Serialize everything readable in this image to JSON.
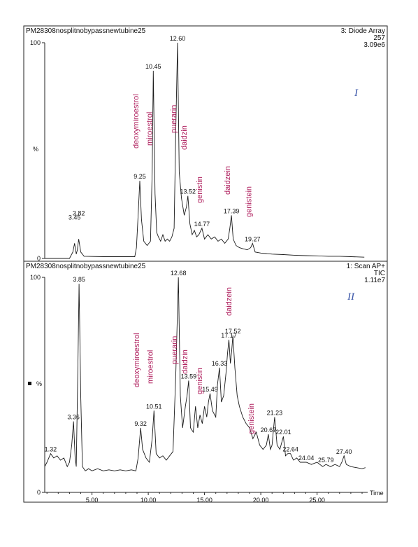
{
  "chart_data": [
    {
      "type": "line",
      "sample_name": "PM28308nosplitnobypassnewtubine25",
      "channel": "3: Diode Array",
      "channel_detail": "257",
      "intensity": "3.09e6",
      "panel_label": "I",
      "ylabel": "%",
      "ytick_labels": [
        "100",
        "0"
      ],
      "ylim": [
        0,
        100
      ],
      "xlim": [
        0.8,
        29.5
      ],
      "peak_labels": [
        {
          "time": 3.45,
          "label": "3.45",
          "y": 17
        },
        {
          "time": 3.82,
          "label": "3.82",
          "y": 19
        },
        {
          "time": 9.25,
          "label": "9.25",
          "y": 36
        },
        {
          "time": 10.45,
          "label": "10.45",
          "y": 87
        },
        {
          "time": 12.6,
          "label": "12.60",
          "y": 100
        },
        {
          "time": 13.52,
          "label": "13.52",
          "y": 29
        },
        {
          "time": 14.77,
          "label": "14.77",
          "y": 14
        },
        {
          "time": 17.39,
          "label": "17.39",
          "y": 20
        },
        {
          "time": 19.27,
          "label": "19.27",
          "y": 7
        }
      ],
      "compounds": [
        {
          "name": "deoxymiroestrol",
          "time": 9.25
        },
        {
          "name": "miroestrol",
          "time": 10.45
        },
        {
          "name": "puerarin",
          "time": 12.6
        },
        {
          "name": "daidzin",
          "time": 13.52
        },
        {
          "name": "genistin",
          "time": 14.9
        },
        {
          "name": "daidzein",
          "time": 17.39
        },
        {
          "name": "genistein",
          "time": 19.27
        }
      ],
      "trace": [
        [
          0.8,
          0.0
        ],
        [
          3.0,
          0.0
        ],
        [
          3.3,
          3.0
        ],
        [
          3.45,
          7.0
        ],
        [
          3.6,
          2.0
        ],
        [
          3.7,
          4.0
        ],
        [
          3.82,
          9.0
        ],
        [
          4.0,
          3.0
        ],
        [
          4.3,
          1.0
        ],
        [
          6.0,
          0.8
        ],
        [
          8.8,
          0.8
        ],
        [
          8.95,
          5.0
        ],
        [
          9.1,
          20.0
        ],
        [
          9.25,
          36.0
        ],
        [
          9.4,
          18.0
        ],
        [
          9.6,
          8.0
        ],
        [
          9.9,
          6.0
        ],
        [
          10.2,
          8.0
        ],
        [
          10.35,
          40.0
        ],
        [
          10.45,
          87.0
        ],
        [
          10.6,
          30.0
        ],
        [
          10.75,
          12.0
        ],
        [
          10.9,
          10.0
        ],
        [
          11.1,
          8.0
        ],
        [
          11.3,
          11.0
        ],
        [
          11.5,
          8.0
        ],
        [
          11.7,
          9.0
        ],
        [
          11.9,
          8.0
        ],
        [
          12.1,
          10.0
        ],
        [
          12.3,
          14.0
        ],
        [
          12.45,
          60.0
        ],
        [
          12.6,
          100.0
        ],
        [
          12.75,
          40.0
        ],
        [
          12.95,
          28.0
        ],
        [
          13.2,
          20.0
        ],
        [
          13.4,
          24.0
        ],
        [
          13.52,
          29.0
        ],
        [
          13.7,
          16.0
        ],
        [
          13.9,
          11.0
        ],
        [
          14.1,
          13.0
        ],
        [
          14.3,
          10.0
        ],
        [
          14.5,
          11.0
        ],
        [
          14.77,
          14.0
        ],
        [
          15.0,
          9.0
        ],
        [
          15.3,
          11.0
        ],
        [
          15.6,
          9.0
        ],
        [
          15.9,
          10.0
        ],
        [
          16.2,
          8.0
        ],
        [
          16.5,
          9.0
        ],
        [
          16.8,
          7.0
        ],
        [
          17.1,
          9.0
        ],
        [
          17.25,
          14.0
        ],
        [
          17.39,
          20.0
        ],
        [
          17.55,
          9.0
        ],
        [
          17.8,
          6.0
        ],
        [
          18.1,
          5.0
        ],
        [
          18.4,
          4.5
        ],
        [
          18.8,
          4.0
        ],
        [
          19.1,
          5.0
        ],
        [
          19.27,
          7.0
        ],
        [
          19.5,
          3.0
        ],
        [
          20.0,
          2.5
        ],
        [
          21.0,
          2.0
        ],
        [
          22.0,
          1.8
        ],
        [
          23.0,
          1.5
        ],
        [
          24.0,
          1.3
        ],
        [
          25.0,
          1.2
        ],
        [
          26.0,
          1.0
        ],
        [
          27.0,
          1.0
        ],
        [
          28.0,
          0.8
        ],
        [
          29.2,
          0.6
        ]
      ]
    },
    {
      "type": "line",
      "sample_name": "PM28308nosplitnobypassnewtubine25",
      "channel": "1: Scan AP+",
      "channel_detail": "TIC",
      "intensity": "1.11e7",
      "panel_label": "II",
      "ylabel": "%",
      "ytick_labels": [
        "100",
        "0"
      ],
      "ylim": [
        0,
        100
      ],
      "xlabel": "Time",
      "xlim": [
        0.8,
        29.5
      ],
      "xtick_labels": [
        "5.00",
        "10.00",
        "15.00",
        "20.00",
        "25.00"
      ],
      "xticks": [
        5,
        10,
        15,
        20,
        25
      ],
      "peak_labels": [
        {
          "time": 1.32,
          "label": "1.32",
          "y": 18
        },
        {
          "time": 3.36,
          "label": "3.36",
          "y": 33
        },
        {
          "time": 3.85,
          "label": "3.85",
          "y": 97
        },
        {
          "time": 9.32,
          "label": "9.32",
          "y": 30
        },
        {
          "time": 10.51,
          "label": "10.51",
          "y": 38
        },
        {
          "time": 12.68,
          "label": "12.68",
          "y": 100
        },
        {
          "time": 13.59,
          "label": "13.59",
          "y": 52
        },
        {
          "time": 15.49,
          "label": "15.49",
          "y": 46
        },
        {
          "time": 16.33,
          "label": "16.33",
          "y": 58
        },
        {
          "time": 17.17,
          "label": "17.17",
          "y": 71
        },
        {
          "time": 17.52,
          "label": "17.52",
          "y": 73
        },
        {
          "time": 20.67,
          "label": "20.67",
          "y": 27
        },
        {
          "time": 21.23,
          "label": "21.23",
          "y": 35
        },
        {
          "time": 22.01,
          "label": "22.01",
          "y": 26
        },
        {
          "time": 22.64,
          "label": "22.64",
          "y": 18
        },
        {
          "time": 24.04,
          "label": "24.04",
          "y": 14
        },
        {
          "time": 25.79,
          "label": "25.79",
          "y": 13
        },
        {
          "time": 27.4,
          "label": "27.40",
          "y": 17
        }
      ],
      "compounds": [
        {
          "name": "deoxymiroestrol",
          "time": 9.32
        },
        {
          "name": "miroestrol",
          "time": 10.51
        },
        {
          "name": "puerarin",
          "time": 12.68
        },
        {
          "name": "daidzin",
          "time": 13.59
        },
        {
          "name": "genistin",
          "time": 14.9
        },
        {
          "name": "daidzein",
          "time": 17.52
        },
        {
          "name": "genistein",
          "time": 19.5
        }
      ],
      "trace": [
        [
          0.8,
          12.0
        ],
        [
          1.0,
          14.0
        ],
        [
          1.32,
          18.0
        ],
        [
          1.6,
          16.0
        ],
        [
          1.9,
          17.0
        ],
        [
          2.2,
          15.0
        ],
        [
          2.5,
          16.0
        ],
        [
          2.8,
          12.0
        ],
        [
          3.0,
          14.0
        ],
        [
          3.2,
          22.0
        ],
        [
          3.36,
          33.0
        ],
        [
          3.5,
          16.0
        ],
        [
          3.6,
          12.0
        ],
        [
          3.75,
          60.0
        ],
        [
          3.85,
          97.0
        ],
        [
          4.0,
          45.0
        ],
        [
          4.15,
          12.0
        ],
        [
          4.4,
          10.0
        ],
        [
          4.7,
          11.0
        ],
        [
          5.0,
          10.0
        ],
        [
          5.5,
          11.0
        ],
        [
          6.0,
          10.0
        ],
        [
          6.5,
          10.5
        ],
        [
          7.0,
          10.0
        ],
        [
          7.5,
          10.5
        ],
        [
          8.0,
          10.0
        ],
        [
          8.5,
          10.5
        ],
        [
          8.9,
          10.0
        ],
        [
          9.1,
          16.0
        ],
        [
          9.32,
          30.0
        ],
        [
          9.5,
          20.0
        ],
        [
          9.8,
          16.0
        ],
        [
          10.1,
          14.0
        ],
        [
          10.35,
          25.0
        ],
        [
          10.51,
          38.0
        ],
        [
          10.7,
          18.0
        ],
        [
          11.0,
          16.0
        ],
        [
          11.3,
          17.0
        ],
        [
          11.6,
          15.0
        ],
        [
          11.9,
          17.0
        ],
        [
          12.2,
          19.0
        ],
        [
          12.45,
          55.0
        ],
        [
          12.68,
          100.0
        ],
        [
          12.85,
          45.0
        ],
        [
          13.05,
          30.0
        ],
        [
          13.3,
          40.0
        ],
        [
          13.45,
          45.0
        ],
        [
          13.59,
          52.0
        ],
        [
          13.75,
          30.0
        ],
        [
          14.0,
          28.0
        ],
        [
          14.2,
          40.0
        ],
        [
          14.4,
          30.0
        ],
        [
          14.6,
          36.0
        ],
        [
          14.8,
          32.0
        ],
        [
          15.0,
          40.0
        ],
        [
          15.2,
          35.0
        ],
        [
          15.35,
          42.0
        ],
        [
          15.49,
          46.0
        ],
        [
          15.7,
          38.0
        ],
        [
          16.0,
          35.0
        ],
        [
          16.15,
          50.0
        ],
        [
          16.33,
          58.0
        ],
        [
          16.5,
          42.0
        ],
        [
          16.7,
          45.0
        ],
        [
          16.9,
          55.0
        ],
        [
          17.05,
          65.0
        ],
        [
          17.17,
          71.0
        ],
        [
          17.3,
          60.0
        ],
        [
          17.42,
          66.0
        ],
        [
          17.52,
          73.0
        ],
        [
          17.7,
          58.0
        ],
        [
          17.9,
          45.0
        ],
        [
          18.1,
          40.0
        ],
        [
          18.4,
          35.0
        ],
        [
          18.7,
          32.0
        ],
        [
          19.0,
          30.0
        ],
        [
          19.3,
          25.0
        ],
        [
          19.6,
          28.0
        ],
        [
          19.9,
          22.0
        ],
        [
          20.2,
          20.0
        ],
        [
          20.5,
          22.0
        ],
        [
          20.67,
          27.0
        ],
        [
          20.85,
          20.0
        ],
        [
          21.0,
          22.0
        ],
        [
          21.23,
          35.0
        ],
        [
          21.45,
          22.0
        ],
        [
          21.7,
          20.0
        ],
        [
          22.01,
          26.0
        ],
        [
          22.2,
          17.0
        ],
        [
          22.4,
          18.0
        ],
        [
          22.64,
          18.0
        ],
        [
          22.9,
          15.0
        ],
        [
          23.2,
          16.0
        ],
        [
          23.5,
          14.0
        ],
        [
          24.04,
          14.0
        ],
        [
          24.5,
          13.0
        ],
        [
          25.0,
          14.0
        ],
        [
          25.5,
          12.0
        ],
        [
          25.79,
          13.0
        ],
        [
          26.2,
          12.0
        ],
        [
          26.6,
          13.0
        ],
        [
          27.0,
          12.0
        ],
        [
          27.2,
          14.0
        ],
        [
          27.4,
          17.0
        ],
        [
          27.6,
          13.0
        ],
        [
          28.0,
          12.0
        ],
        [
          28.5,
          11.5
        ],
        [
          29.0,
          11.0
        ],
        [
          29.3,
          11.5
        ]
      ]
    }
  ]
}
